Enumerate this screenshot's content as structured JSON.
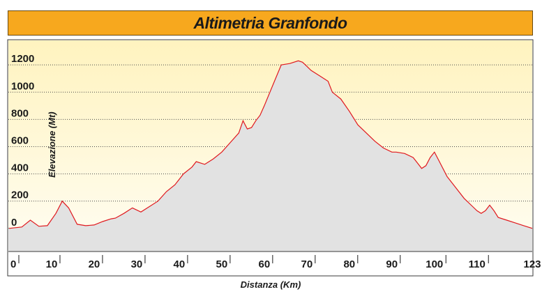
{
  "chart_data": {
    "type": "area",
    "title": "Altimetria Granfondo",
    "xlabel": "Distanza (Km)",
    "ylabel": "Elevazione (Mt)",
    "x_ticks": [
      "0",
      "10",
      "20",
      "30",
      "40",
      "50",
      "60",
      "70",
      "80",
      "90",
      "100",
      "110",
      "123"
    ],
    "x_tick_values": [
      0,
      10,
      20,
      30,
      40,
      50,
      60,
      70,
      80,
      90,
      100,
      110,
      123
    ],
    "y_ticks": [
      "0",
      "200",
      "400",
      "600",
      "800",
      "1000",
      "1200"
    ],
    "y_tick_values": [
      0,
      200,
      400,
      600,
      800,
      1000,
      1200
    ],
    "xlim": [
      0,
      123
    ],
    "ylim": [
      -170,
      1380
    ],
    "grid": "horizontal dotted",
    "colors": {
      "line": "#e0181e",
      "area": "#e2e2e2",
      "background_top": "#fff3bf",
      "background_bottom": "#fffdf2",
      "title_bar": "#f7a81e"
    },
    "series": [
      {
        "x": [
          0,
          3,
          5,
          7,
          9,
          11,
          12.5,
          14,
          16,
          18,
          20,
          22,
          24,
          25,
          27,
          29,
          31,
          33,
          35,
          37,
          39,
          41,
          43,
          44,
          46,
          48,
          50,
          52,
          54,
          55,
          56,
          57,
          58,
          59,
          60,
          62,
          64,
          66,
          68,
          69,
          70,
          71,
          73,
          75,
          76,
          78,
          80,
          82,
          84,
          86,
          88,
          90,
          91,
          93,
          95,
          96,
          97,
          98,
          99,
          100,
          101,
          103,
          105,
          107,
          109,
          110,
          111,
          112,
          113,
          114,
          115,
          117,
          119,
          121,
          123
        ],
        "y": [
          0,
          10,
          60,
          15,
          20,
          110,
          200,
          150,
          30,
          20,
          25,
          50,
          70,
          75,
          110,
          150,
          120,
          160,
          200,
          270,
          320,
          400,
          450,
          490,
          470,
          510,
          560,
          630,
          700,
          790,
          730,
          740,
          790,
          830,
          900,
          1050,
          1200,
          1210,
          1230,
          1220,
          1190,
          1160,
          1120,
          1080,
          1000,
          950,
          860,
          760,
          700,
          640,
          590,
          560,
          560,
          550,
          520,
          480,
          440,
          460,
          520,
          560,
          500,
          380,
          300,
          220,
          160,
          130,
          110,
          130,
          170,
          130,
          80,
          60,
          40,
          20,
          0
        ]
      }
    ]
  }
}
